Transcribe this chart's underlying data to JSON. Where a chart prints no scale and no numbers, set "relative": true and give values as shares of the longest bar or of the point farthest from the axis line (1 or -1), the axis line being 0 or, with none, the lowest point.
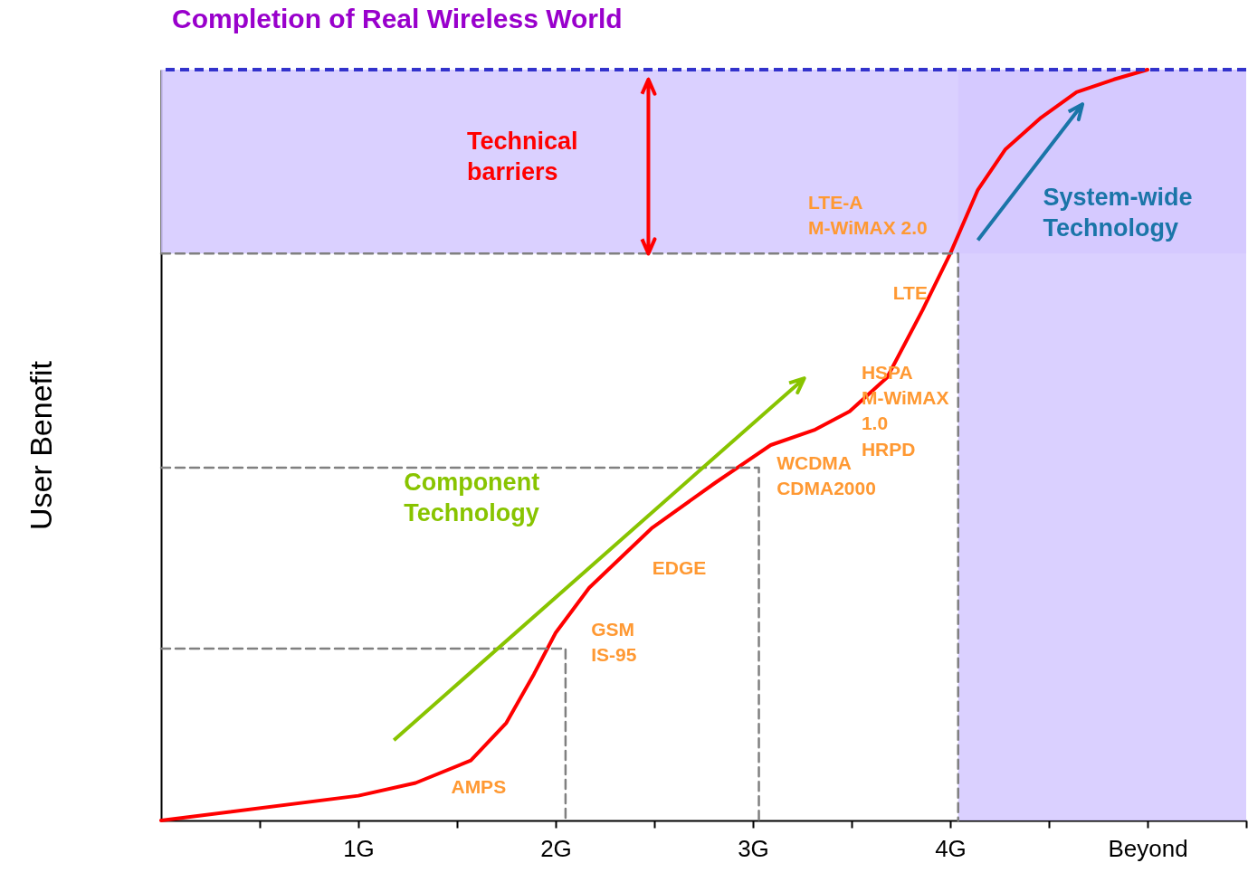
{
  "chart_data": {
    "type": "line",
    "title": "Completion of Real Wireless  World",
    "ylabel": "User Benefit",
    "relative": true,
    "grid": false,
    "xlim": [
      0,
      5.5
    ],
    "xticks": [
      {
        "value": 0.5,
        "label": null
      },
      {
        "value": 1,
        "label": "1G"
      },
      {
        "value": 1.5,
        "label": null
      },
      {
        "value": 2,
        "label": "2G"
      },
      {
        "value": 2.5,
        "label": null
      },
      {
        "value": 3,
        "label": "3G"
      },
      {
        "value": 3.5,
        "label": null
      },
      {
        "value": 4,
        "label": "4G"
      },
      {
        "value": 4.5,
        "label": null
      },
      {
        "value": 5,
        "label": "Beyond"
      },
      {
        "value": 5.5,
        "label": null
      }
    ],
    "series": [
      {
        "color": "#ff0000",
        "line_style": "solid",
        "x": [
          0,
          1,
          1.29,
          1.57,
          1.75,
          1.89,
          2.0,
          2.17,
          2.49,
          2.81,
          3.09,
          3.31,
          3.49,
          3.68,
          3.86,
          4.0,
          4.14,
          4.28,
          4.46,
          4.64,
          4.83,
          5.0
        ],
        "values": [
          0,
          0.033,
          0.05,
          0.08,
          0.13,
          0.195,
          0.25,
          0.31,
          0.39,
          0.45,
          0.5,
          0.52,
          0.545,
          0.59,
          0.68,
          0.755,
          0.84,
          0.894,
          0.936,
          0.97,
          0.987,
          1.0
        ]
      },
      {
        "color": "#808080",
        "line_style": "dashed",
        "x": [
          0,
          2.05,
          2.05
        ],
        "values": [
          0.229,
          0.229,
          0
        ]
      },
      {
        "color": "#808080",
        "line_style": "dashed",
        "x": [
          0,
          3.03,
          3.03
        ],
        "values": [
          0.47,
          0.47,
          0
        ]
      },
      {
        "color": "#808080",
        "line_style": "dashed",
        "x": [
          0,
          4.04,
          4.04
        ],
        "values": [
          0.755,
          0.755,
          0
        ]
      }
    ],
    "bands": [
      {
        "axis": "y",
        "from": 0.755,
        "to": 1,
        "color": "#d4c8ff"
      },
      {
        "axis": "x",
        "from": 4.04,
        "to": 5.5,
        "color": "#d4c8ff"
      }
    ],
    "ref_lines": [
      {
        "axis": "y",
        "value": 1,
        "color": "#3333cc",
        "line_style": "dashed"
      }
    ],
    "annotations": [
      "AMPS",
      "GSM\nIS-95",
      "EDGE",
      "WCDMA\nCDMA2000",
      "HSPA\nM-WiMAX\n1.0",
      "HRPD",
      "LTE",
      "LTE-A\nM-WiMAX 2.0",
      "Technical\nbarriers",
      "Component\nTechnology",
      "System-wide\nTechnology"
    ]
  }
}
